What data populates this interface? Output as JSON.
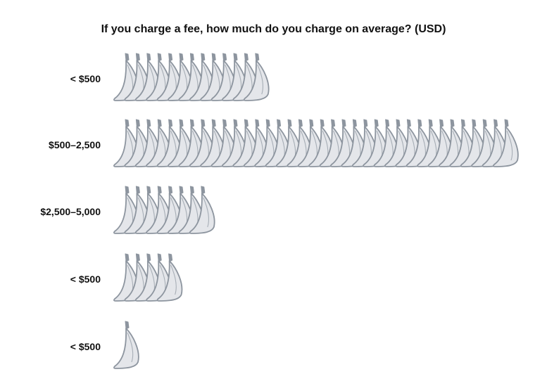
{
  "chart_data": {
    "type": "bar",
    "style": "pictogram",
    "icon": "banana-icon",
    "title": "If you charge a fee, how much do you charge on average? (USD)",
    "categories": [
      "< $500",
      "$500–2,500",
      "$2,500–5,000",
      "< $500",
      "< $500"
    ],
    "values": [
      13,
      36,
      8,
      5,
      1
    ],
    "orientation": "horizontal",
    "grid": false,
    "legend": "none",
    "colors": {
      "icon_fill": "#e4e6ea",
      "icon_stroke": "#8d959f",
      "text": "#111111"
    }
  }
}
